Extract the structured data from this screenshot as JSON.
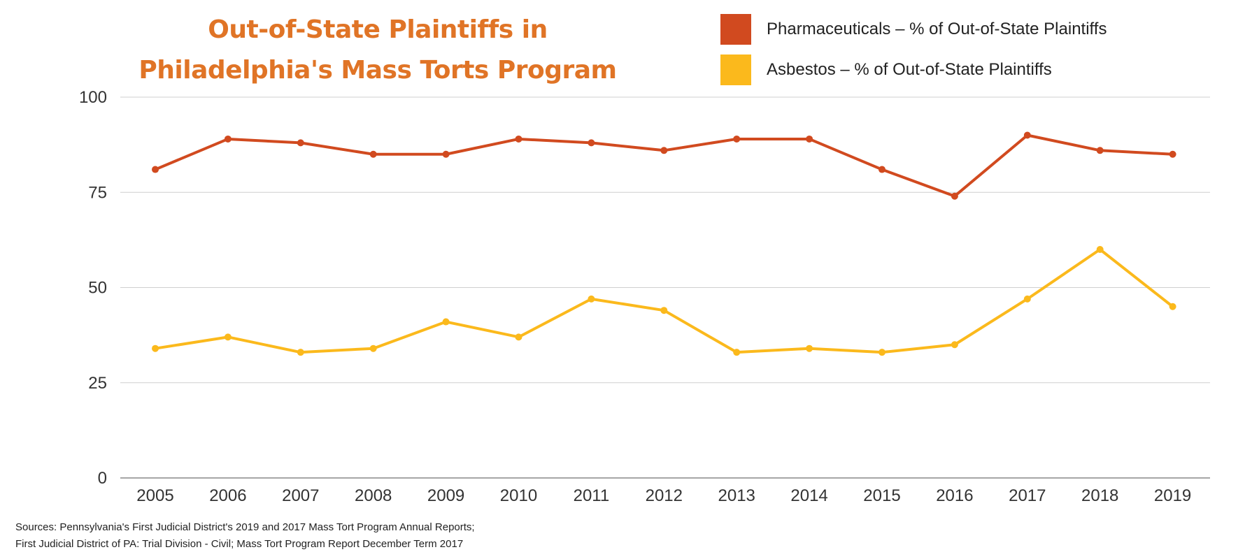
{
  "title_lines": [
    "Out-of-State Plaintiffs in",
    "Philadelphia's Mass Torts Program"
  ],
  "colors": {
    "pharma": "#d14a1f",
    "asbestos": "#fbb91c",
    "title": "#e07426",
    "grid": "#cfcfcf",
    "axis": "#888888"
  },
  "sources_lines": [
    "Sources: Pennsylvania's First Judicial District's 2019 and 2017 Mass Tort Program Annual Reports;",
    "First Judicial District of PA: Trial Division - Civil; Mass Tort Program Report December Term 2017"
  ],
  "chart_data": {
    "type": "line",
    "categories": [
      "2005",
      "2006",
      "2007",
      "2008",
      "2009",
      "2010",
      "2011",
      "2012",
      "2013",
      "2014",
      "2015",
      "2016",
      "2017",
      "2018",
      "2019"
    ],
    "series": [
      {
        "name": "Pharmaceuticals – % of Out-of-State Plaintiffs",
        "color": "#d14a1f",
        "values": [
          81,
          89,
          88,
          85,
          85,
          89,
          88,
          86,
          89,
          89,
          81,
          74,
          90,
          86,
          85
        ]
      },
      {
        "name": "Asbestos – % of Out-of-State Plaintiffs",
        "color": "#fbb91c",
        "values": [
          34,
          37,
          33,
          34,
          41,
          37,
          47,
          44,
          33,
          34,
          33,
          35,
          47,
          60,
          45
        ]
      }
    ],
    "ylim": [
      0,
      100
    ],
    "yticks": [
      0,
      25,
      50,
      75,
      100
    ],
    "grid": true,
    "legend_position": "top-right"
  }
}
